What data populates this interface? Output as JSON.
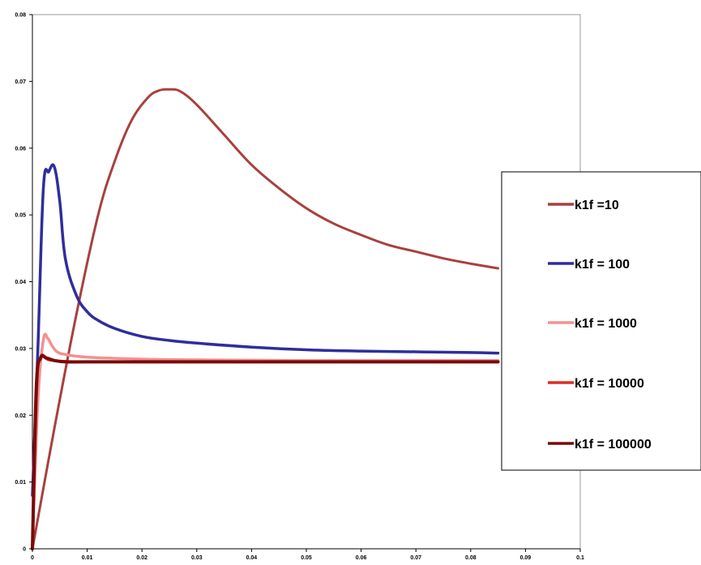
{
  "chart_data": {
    "type": "line",
    "title": "",
    "xlabel": "",
    "ylabel": "",
    "xlim": [
      0,
      0.1
    ],
    "ylim": [
      0,
      0.08
    ],
    "x_ticks": [
      "0",
      "0.01",
      "0.02",
      "0.03",
      "0.04",
      "0.05",
      "0.06",
      "0.07",
      "0.08",
      "0.09",
      "0.1"
    ],
    "y_ticks": [
      "0",
      "0.01",
      "0.02",
      "0.03",
      "0.04",
      "0.05",
      "0.06",
      "0.07",
      "0.08"
    ],
    "grid": false,
    "legend_position": "right",
    "series": [
      {
        "name": "k1f =10",
        "color": "#a9403e",
        "x": [
          0,
          0.004,
          0.008,
          0.012,
          0.015,
          0.018,
          0.021,
          0.023,
          0.025,
          0.027,
          0.03,
          0.035,
          0.04,
          0.045,
          0.05,
          0.055,
          0.06,
          0.065,
          0.07,
          0.075,
          0.08,
          0.085
        ],
        "y": [
          0,
          0.018,
          0.035,
          0.05,
          0.058,
          0.064,
          0.0675,
          0.0686,
          0.0688,
          0.0685,
          0.0665,
          0.062,
          0.0575,
          0.054,
          0.051,
          0.0487,
          0.047,
          0.0455,
          0.0445,
          0.0435,
          0.0427,
          0.042
        ]
      },
      {
        "name": "k1f = 100",
        "color": "#2e2e9c",
        "x": [
          0,
          0.001,
          0.002,
          0.003,
          0.004,
          0.005,
          0.006,
          0.008,
          0.01,
          0.012,
          0.015,
          0.02,
          0.025,
          0.03,
          0.04,
          0.05,
          0.06,
          0.07,
          0.08,
          0.085
        ],
        "y": [
          0.008,
          0.03,
          0.054,
          0.0565,
          0.0572,
          0.052,
          0.0435,
          0.038,
          0.0355,
          0.0342,
          0.033,
          0.0318,
          0.0312,
          0.0308,
          0.0302,
          0.0298,
          0.0296,
          0.0295,
          0.0294,
          0.0293
        ]
      },
      {
        "name": "k1f = 1000",
        "color": "#f59090",
        "x": [
          0,
          0.001,
          0.002,
          0.0028,
          0.0035,
          0.0045,
          0.006,
          0.01,
          0.02,
          0.03,
          0.05,
          0.085
        ],
        "y": [
          0,
          0.022,
          0.0313,
          0.0315,
          0.0305,
          0.0295,
          0.0291,
          0.0287,
          0.0284,
          0.0283,
          0.0282,
          0.0282
        ]
      },
      {
        "name": "k1f = 10000",
        "color": "#e32a25",
        "x": [
          0,
          0.0008,
          0.0015,
          0.003,
          0.005,
          0.01,
          0.03,
          0.085
        ],
        "y": [
          0,
          0.024,
          0.0285,
          0.0283,
          0.0281,
          0.028,
          0.028,
          0.028
        ]
      },
      {
        "name": "k1f = 100000",
        "color": "#7a0a0a",
        "x": [
          0,
          0.0007,
          0.0015,
          0.0025,
          0.004,
          0.006,
          0.01,
          0.03,
          0.085
        ],
        "y": [
          0,
          0.024,
          0.0286,
          0.0286,
          0.0282,
          0.028,
          0.028,
          0.028,
          0.028
        ]
      }
    ]
  }
}
